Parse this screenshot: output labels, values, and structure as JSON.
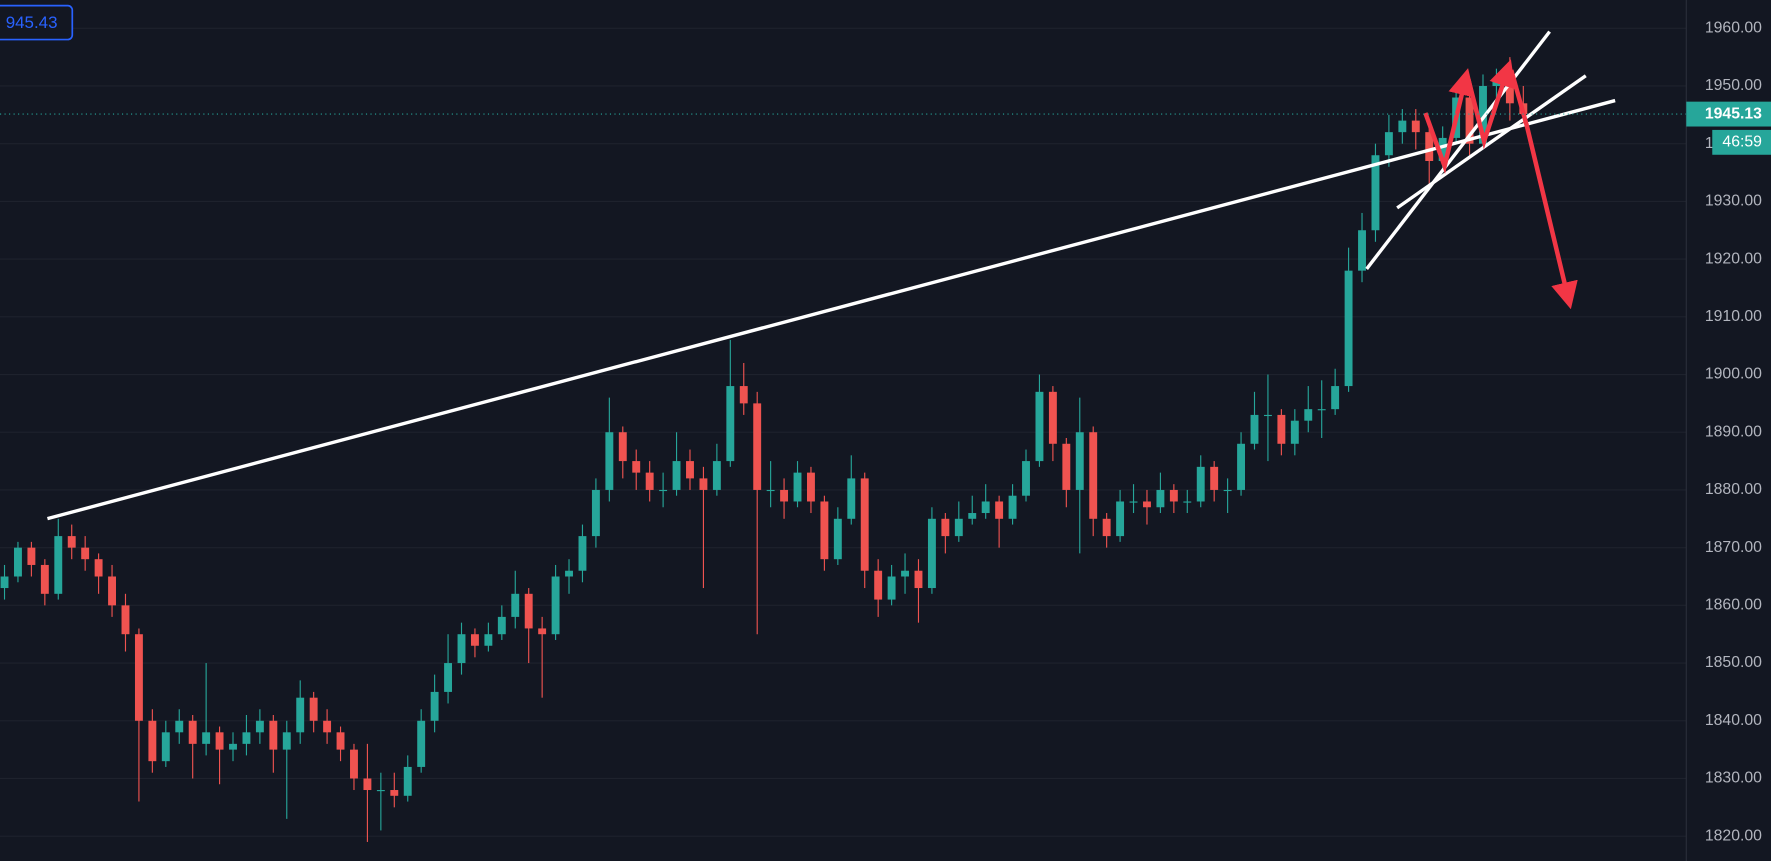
{
  "chart_data": {
    "type": "candlestick",
    "up_color": "#26a69a",
    "down_color": "#ef5350",
    "ylim": [
      1815.7,
      1964.9
    ],
    "yticks": [
      {
        "value": 1820,
        "label": "1820.00"
      },
      {
        "value": 1830,
        "label": "1830.00"
      },
      {
        "value": 1840,
        "label": "1840.00"
      },
      {
        "value": 1850,
        "label": "1850.00"
      },
      {
        "value": 1860,
        "label": "1860.00"
      },
      {
        "value": 1870,
        "label": "1870.00"
      },
      {
        "value": 1880,
        "label": "1880.00"
      },
      {
        "value": 1890,
        "label": "1890.00"
      },
      {
        "value": 1900,
        "label": "1900.00"
      },
      {
        "value": 1910,
        "label": "1910.00"
      },
      {
        "value": 1920,
        "label": "1920.00"
      },
      {
        "value": 1930,
        "label": "1930.00"
      },
      {
        "value": 1940,
        "label": "1940.00"
      },
      {
        "value": 1950,
        "label": "1950.00"
      },
      {
        "value": 1960,
        "label": "1960.00"
      }
    ],
    "grid": true,
    "last_price": {
      "value": 1945.13,
      "label": "1945.13"
    },
    "countdown": "46:59",
    "top_label": "945.43",
    "ohlc": [
      [
        1863,
        1867,
        1861,
        1865
      ],
      [
        1865,
        1871,
        1864,
        1870
      ],
      [
        1870,
        1871,
        1865,
        1867
      ],
      [
        1867,
        1868,
        1860,
        1862
      ],
      [
        1862,
        1875,
        1861,
        1872
      ],
      [
        1872,
        1874,
        1868,
        1870
      ],
      [
        1870,
        1872,
        1866,
        1868
      ],
      [
        1868,
        1869,
        1862,
        1865
      ],
      [
        1865,
        1867,
        1858,
        1860
      ],
      [
        1860,
        1862,
        1852,
        1855
      ],
      [
        1855,
        1856,
        1826,
        1840
      ],
      [
        1840,
        1842,
        1831,
        1833
      ],
      [
        1833,
        1840,
        1832,
        1838
      ],
      [
        1838,
        1842,
        1836,
        1840
      ],
      [
        1840,
        1841,
        1830,
        1836
      ],
      [
        1836,
        1850,
        1834,
        1838
      ],
      [
        1838,
        1839,
        1829,
        1835
      ],
      [
        1835,
        1838,
        1833,
        1836
      ],
      [
        1836,
        1841,
        1834,
        1838
      ],
      [
        1838,
        1842,
        1836,
        1840
      ],
      [
        1840,
        1841,
        1831,
        1835
      ],
      [
        1835,
        1840,
        1823,
        1838
      ],
      [
        1838,
        1847,
        1836,
        1844
      ],
      [
        1844,
        1845,
        1838,
        1840
      ],
      [
        1840,
        1842,
        1836,
        1838
      ],
      [
        1838,
        1839,
        1833,
        1835
      ],
      [
        1835,
        1836,
        1828,
        1830
      ],
      [
        1830,
        1836,
        1819,
        1828
      ],
      [
        1828,
        1831,
        1821,
        1828
      ],
      [
        1828,
        1831,
        1825,
        1827
      ],
      [
        1827,
        1834,
        1826,
        1832
      ],
      [
        1832,
        1842,
        1831,
        1840
      ],
      [
        1840,
        1848,
        1838,
        1845
      ],
      [
        1845,
        1855,
        1843,
        1850
      ],
      [
        1850,
        1857,
        1848,
        1855
      ],
      [
        1855,
        1856,
        1851,
        1853
      ],
      [
        1853,
        1857,
        1852,
        1855
      ],
      [
        1855,
        1860,
        1854,
        1858
      ],
      [
        1858,
        1866,
        1856,
        1862
      ],
      [
        1862,
        1863,
        1850,
        1856
      ],
      [
        1856,
        1858,
        1844,
        1855
      ],
      [
        1855,
        1867,
        1854,
        1865
      ],
      [
        1865,
        1868,
        1862,
        1866
      ],
      [
        1866,
        1874,
        1864,
        1872
      ],
      [
        1872,
        1882,
        1870,
        1880
      ],
      [
        1880,
        1896,
        1878,
        1890
      ],
      [
        1890,
        1891,
        1882,
        1885
      ],
      [
        1885,
        1887,
        1880,
        1883
      ],
      [
        1883,
        1885,
        1878,
        1880
      ],
      [
        1880,
        1883,
        1877,
        1880
      ],
      [
        1880,
        1890,
        1879,
        1885
      ],
      [
        1885,
        1887,
        1880,
        1882
      ],
      [
        1882,
        1884,
        1863,
        1880
      ],
      [
        1880,
        1888,
        1879,
        1885
      ],
      [
        1885,
        1906,
        1884,
        1898
      ],
      [
        1898,
        1902,
        1893,
        1895
      ],
      [
        1895,
        1897,
        1855,
        1880
      ],
      [
        1880,
        1885,
        1877,
        1880
      ],
      [
        1880,
        1882,
        1875,
        1878
      ],
      [
        1878,
        1885,
        1877,
        1883
      ],
      [
        1883,
        1884,
        1876,
        1878
      ],
      [
        1878,
        1879,
        1866,
        1868
      ],
      [
        1868,
        1877,
        1867,
        1875
      ],
      [
        1875,
        1886,
        1874,
        1882
      ],
      [
        1882,
        1883,
        1863,
        1866
      ],
      [
        1866,
        1868,
        1858,
        1861
      ],
      [
        1861,
        1867,
        1860,
        1865
      ],
      [
        1865,
        1869,
        1862,
        1866
      ],
      [
        1866,
        1868,
        1857,
        1863
      ],
      [
        1863,
        1877,
        1862,
        1875
      ],
      [
        1875,
        1876,
        1869,
        1872
      ],
      [
        1872,
        1878,
        1871,
        1875
      ],
      [
        1875,
        1879,
        1874,
        1876
      ],
      [
        1876,
        1881,
        1875,
        1878
      ],
      [
        1878,
        1879,
        1870,
        1875
      ],
      [
        1875,
        1881,
        1874,
        1879
      ],
      [
        1879,
        1887,
        1878,
        1885
      ],
      [
        1885,
        1900,
        1884,
        1897
      ],
      [
        1897,
        1898,
        1885,
        1888
      ],
      [
        1888,
        1889,
        1877,
        1880
      ],
      [
        1880,
        1896,
        1869,
        1890
      ],
      [
        1890,
        1891,
        1872,
        1875
      ],
      [
        1875,
        1876,
        1870,
        1872
      ],
      [
        1872,
        1880,
        1871,
        1878
      ],
      [
        1878,
        1881,
        1876,
        1878
      ],
      [
        1878,
        1880,
        1874,
        1877
      ],
      [
        1877,
        1883,
        1876,
        1880
      ],
      [
        1880,
        1881,
        1876,
        1878
      ],
      [
        1878,
        1880,
        1876,
        1878
      ],
      [
        1878,
        1886,
        1877,
        1884
      ],
      [
        1884,
        1885,
        1878,
        1880
      ],
      [
        1880,
        1882,
        1876,
        1880
      ],
      [
        1880,
        1890,
        1879,
        1888
      ],
      [
        1888,
        1897,
        1887,
        1893
      ],
      [
        1893,
        1900,
        1885,
        1893
      ],
      [
        1893,
        1894,
        1886,
        1888
      ],
      [
        1888,
        1894,
        1886,
        1892
      ],
      [
        1892,
        1898,
        1890,
        1894
      ],
      [
        1894,
        1899,
        1889,
        1894
      ],
      [
        1894,
        1901,
        1893,
        1898
      ],
      [
        1898,
        1922,
        1897,
        1918
      ],
      [
        1918,
        1928,
        1916,
        1925
      ],
      [
        1925,
        1940,
        1923,
        1938
      ],
      [
        1938,
        1945,
        1936,
        1942
      ],
      [
        1942,
        1946,
        1940,
        1944
      ],
      [
        1944,
        1946,
        1939,
        1942
      ],
      [
        1942,
        1944,
        1933,
        1937
      ],
      [
        1937,
        1943,
        1935,
        1941
      ],
      [
        1941,
        1950,
        1940,
        1948
      ],
      [
        1948,
        1949,
        1938,
        1940
      ],
      [
        1940,
        1952,
        1939,
        1950
      ],
      [
        1950,
        1953,
        1947,
        1951
      ],
      [
        1951,
        1955,
        1944,
        1947
      ],
      [
        1947,
        1950,
        1943,
        1945.13
      ]
    ]
  }
}
